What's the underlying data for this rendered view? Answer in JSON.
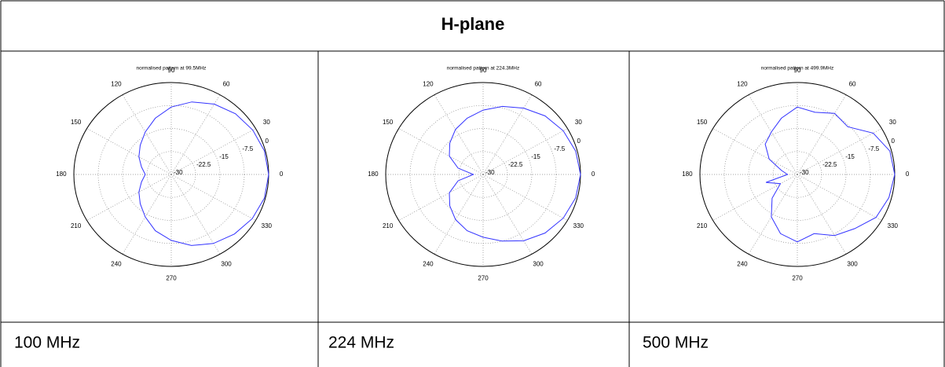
{
  "header": {
    "title": "H-plane"
  },
  "chart_data": [
    {
      "type": "polar",
      "title": "normalised pattern at 99.5MHz",
      "color": "#3333ff",
      "grid": true,
      "rlim": [
        -30,
        0
      ],
      "rticks": [
        -30,
        -22.5,
        -15,
        -7.5,
        0
      ],
      "thetaticks": [
        0,
        30,
        60,
        90,
        120,
        150,
        180,
        210,
        240,
        270,
        300,
        330
      ],
      "theta": [
        0,
        15,
        30,
        45,
        60,
        75,
        90,
        105,
        120,
        135,
        150,
        165,
        180,
        195,
        210,
        225,
        240,
        255,
        270,
        285,
        300,
        315,
        330,
        345
      ],
      "values": [
        0,
        -0.3,
        -1,
        -2,
        -3.5,
        -5.5,
        -8,
        -11,
        -14,
        -16.5,
        -18.5,
        -20.5,
        -22,
        -20.5,
        -18.5,
        -16.5,
        -14,
        -11,
        -8.5,
        -6,
        -4,
        -2.5,
        -1.2,
        -0.3
      ]
    },
    {
      "type": "polar",
      "title": "normalised pattern at 224.3MHz",
      "color": "#3333ff",
      "grid": true,
      "rlim": [
        -30,
        0
      ],
      "rticks": [
        -30,
        -22.5,
        -15,
        -7.5,
        0
      ],
      "thetaticks": [
        0,
        30,
        60,
        90,
        120,
        150,
        180,
        210,
        240,
        270,
        300,
        330
      ],
      "theta": [
        0,
        15,
        30,
        45,
        60,
        75,
        90,
        105,
        120,
        135,
        150,
        165,
        180,
        195,
        210,
        225,
        240,
        255,
        270,
        285,
        300,
        315,
        330,
        345
      ],
      "values": [
        0,
        -0.5,
        -1.5,
        -3,
        -5,
        -7,
        -9,
        -11,
        -13,
        -15.5,
        -18,
        -22,
        -27,
        -22,
        -18,
        -15.5,
        -13,
        -11,
        -9.5,
        -7.5,
        -5,
        -3,
        -1.5,
        -0.5
      ]
    },
    {
      "type": "polar",
      "title": "normalised pattern at 499.9MHz",
      "color": "#3333ff",
      "grid": true,
      "rlim": [
        -30,
        0
      ],
      "rticks": [
        -30,
        -22.5,
        -15,
        -7.5,
        0
      ],
      "thetaticks": [
        0,
        30,
        60,
        90,
        120,
        150,
        180,
        210,
        240,
        270,
        300,
        330
      ],
      "theta": [
        0,
        15,
        30,
        45,
        60,
        75,
        90,
        105,
        120,
        135,
        150,
        165,
        180,
        195,
        210,
        225,
        240,
        255,
        270,
        285,
        300,
        315,
        330,
        345
      ],
      "values": [
        0,
        -0.5,
        -3,
        -8,
        -7,
        -9,
        -8,
        -11,
        -14,
        -16,
        -20,
        -25,
        -27,
        -20,
        -24,
        -19,
        -14,
        -10,
        -8,
        -10,
        -7,
        -5,
        -2,
        -0.8
      ]
    }
  ],
  "captions": [
    "100 MHz",
    "224 MHz",
    "500 MHz"
  ]
}
